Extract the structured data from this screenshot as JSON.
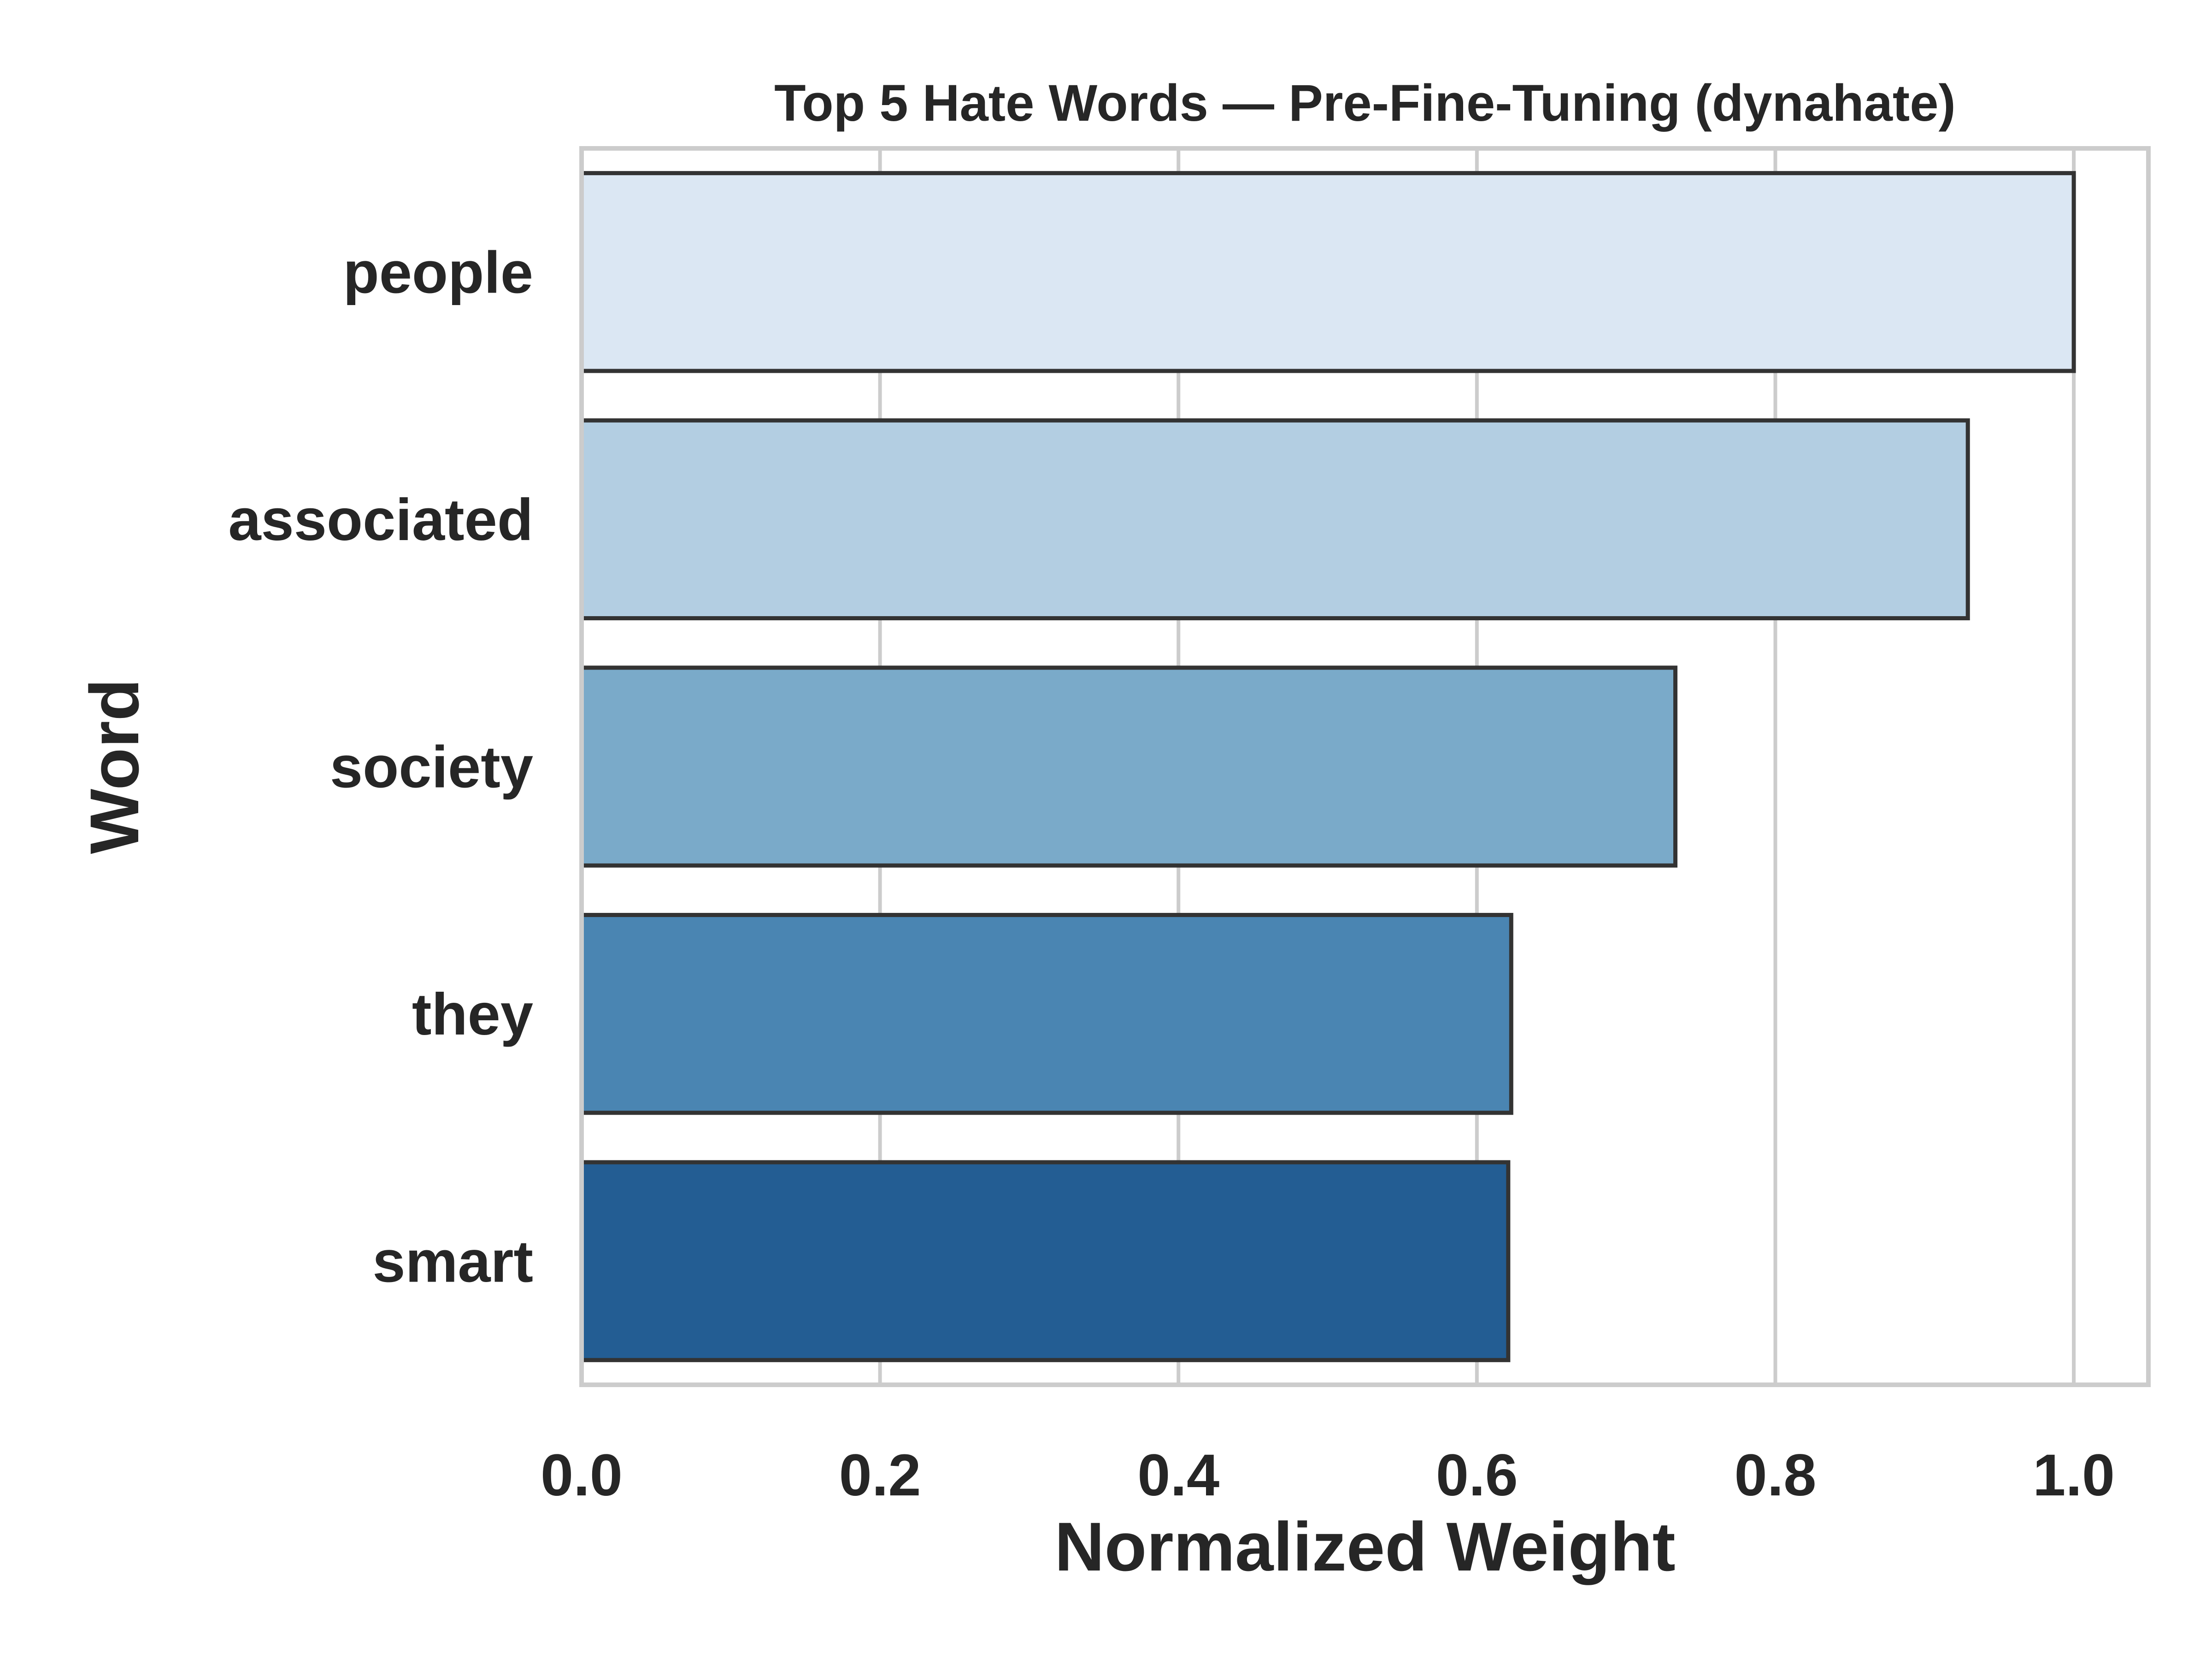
{
  "chart_data": {
    "type": "bar",
    "orientation": "horizontal",
    "title": "Top 5 Hate Words — Pre-Fine-Tuning (dynahate)",
    "xlabel": "Normalized Weight",
    "ylabel": "Word",
    "categories": [
      "people",
      "associated",
      "society",
      "they",
      "smart"
    ],
    "values": [
      1.0,
      0.929,
      0.733,
      0.623,
      0.621
    ],
    "colors": [
      "#dbe7f3",
      "#b3cee2",
      "#7aaac9",
      "#4a85b2",
      "#235d93"
    ],
    "xlim": [
      0.0,
      1.05
    ],
    "xticks": [
      0.0,
      0.2,
      0.4,
      0.6,
      0.8,
      1.0
    ],
    "xtick_labels": [
      "0.0",
      "0.2",
      "0.4",
      "0.6",
      "0.8",
      "1.0"
    ],
    "grid": "x-major",
    "legend": "none"
  }
}
